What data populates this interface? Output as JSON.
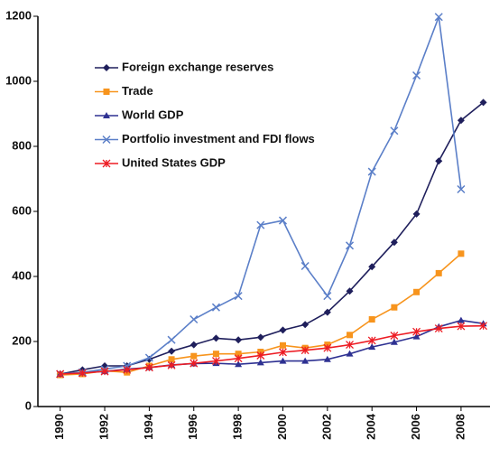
{
  "chart_data": {
    "type": "line",
    "x": [
      1990,
      1991,
      1992,
      1993,
      1994,
      1995,
      1996,
      1997,
      1998,
      1999,
      2000,
      2001,
      2002,
      2003,
      2004,
      2005,
      2006,
      2007,
      2008,
      2009
    ],
    "xlim": [
      1989,
      2009.3
    ],
    "xticks": [
      1990,
      1992,
      1994,
      1996,
      1998,
      2000,
      2002,
      2004,
      2006,
      2008
    ],
    "ylim": [
      0,
      1200
    ],
    "yticks": [
      0,
      200,
      400,
      600,
      800,
      1000,
      1200
    ],
    "legend": "upper-left",
    "series": [
      {
        "name": "Foreign exchange reserves",
        "color": "#1f1f5c",
        "marker": "diamond",
        "values": [
          100,
          113,
          125,
          125,
          145,
          170,
          190,
          210,
          205,
          213,
          235,
          252,
          290,
          355,
          430,
          505,
          592,
          755,
          880,
          935
        ]
      },
      {
        "name": "Trade",
        "color": "#f7941d",
        "marker": "square",
        "values": [
          97,
          100,
          110,
          105,
          125,
          145,
          155,
          162,
          162,
          168,
          188,
          180,
          190,
          220,
          268,
          305,
          352,
          410,
          470,
          null
        ]
      },
      {
        "name": "World GDP",
        "color": "#2e3192",
        "marker": "triangle",
        "values": [
          100,
          105,
          108,
          115,
          120,
          128,
          132,
          133,
          130,
          135,
          140,
          140,
          145,
          162,
          183,
          198,
          215,
          245,
          265,
          255
        ]
      },
      {
        "name": "Portfolio investment and FDI flows",
        "color": "#5b7fc8",
        "marker": "x",
        "values": [
          100,
          105,
          115,
          125,
          150,
          205,
          268,
          305,
          340,
          558,
          572,
          432,
          340,
          495,
          722,
          848,
          1018,
          1198,
          668,
          null
        ]
      },
      {
        "name": "United States GDP",
        "color": "#ed1c24",
        "marker": "asterisk",
        "values": [
          100,
          103,
          108,
          113,
          120,
          127,
          133,
          140,
          148,
          157,
          167,
          173,
          180,
          190,
          203,
          218,
          230,
          240,
          247,
          248
        ]
      }
    ]
  }
}
